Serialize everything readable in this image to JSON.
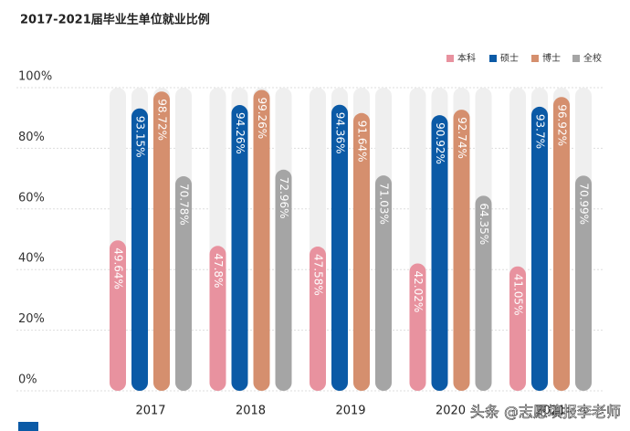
{
  "chart_data": {
    "type": "bar",
    "title": "2017-2021届毕业生单位就业比例",
    "categories": [
      "2017",
      "2018",
      "2019",
      "2020",
      "2021"
    ],
    "series": [
      {
        "name": "本科",
        "color": "#e8929f",
        "values": [
          49.64,
          47.8,
          47.58,
          42.02,
          41.05
        ],
        "value_labels": [
          "49.64%",
          "47.8%",
          "47.58%",
          "42.02%",
          "41.05%"
        ]
      },
      {
        "name": "硕士",
        "color": "#0b5aa6",
        "values": [
          93.15,
          94.26,
          94.36,
          90.92,
          93.7
        ],
        "value_labels": [
          "93.15%",
          "94.26%",
          "94.36%",
          "90.92%",
          "93.7%"
        ]
      },
      {
        "name": "博士",
        "color": "#d58f6e",
        "values": [
          98.72,
          99.26,
          91.64,
          92.74,
          96.92
        ],
        "value_labels": [
          "98.72%",
          "99.26%",
          "91.64%",
          "92.74%",
          "96.92%"
        ]
      },
      {
        "name": "全校",
        "color": "#a5a5a5",
        "values": [
          70.78,
          72.96,
          71.03,
          64.35,
          70.99
        ],
        "value_labels": [
          "70.78%",
          "72.96%",
          "71.03%",
          "64.35%",
          "70.99%"
        ]
      }
    ],
    "ylim": [
      0,
      100
    ],
    "yticks": [
      {
        "value": 0,
        "label": "0%"
      },
      {
        "value": 20,
        "label": "20%"
      },
      {
        "value": 40,
        "label": "40%"
      },
      {
        "value": 60,
        "label": "60%"
      },
      {
        "value": 80,
        "label": "80%"
      },
      {
        "value": 100,
        "label": "100%"
      }
    ],
    "grid": true,
    "legend": "top-right",
    "watermark": "头条 @志愿填报李老师"
  }
}
